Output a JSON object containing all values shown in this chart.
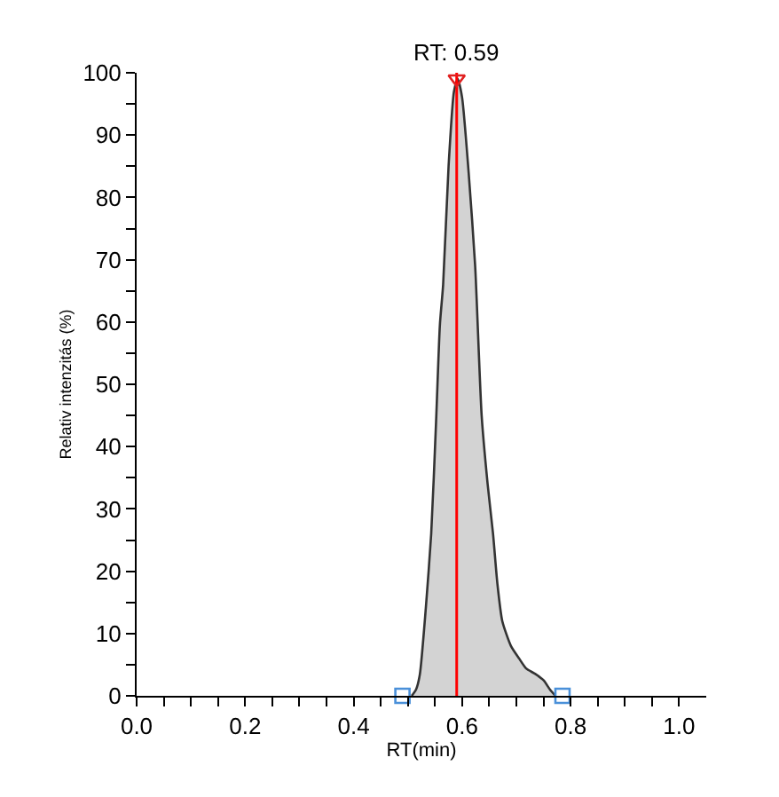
{
  "chart_data": {
    "type": "area",
    "xlabel": "RT(min)",
    "ylabel": "Relativ intenzitás (%)",
    "series": [
      {
        "color": "#d3d3d3",
        "x": [
          0.507,
          0.515,
          0.522,
          0.533,
          0.543,
          0.552,
          0.559,
          0.565,
          0.575,
          0.585,
          0.592,
          0.6,
          0.612,
          0.624,
          0.636,
          0.647,
          0.657,
          0.665,
          0.674,
          0.69,
          0.705,
          0.718,
          0.735,
          0.75,
          0.762,
          0.772
        ],
        "values": [
          0,
          1,
          3.4,
          14,
          26,
          44,
          59.5,
          66,
          85,
          97,
          99,
          96,
          84,
          69,
          45,
          34,
          26,
          18,
          12,
          8,
          6,
          4.4,
          3.5,
          2.5,
          1,
          0
        ]
      },
      {
        "type": "scatter",
        "marker": "square",
        "color": "#4a90d9",
        "x": [
          0.49,
          0.785
        ],
        "values": [
          0,
          0
        ]
      },
      {
        "type": "scatter",
        "marker": "triangle",
        "color": "#e02020",
        "x": [
          0.59
        ],
        "values": [
          99
        ]
      }
    ],
    "ref_lines": [
      {
        "axis": "x",
        "value": 0.59,
        "color": "#ff0000",
        "line_style": "solid"
      }
    ],
    "annotations": [
      {
        "text": "RT: 0.59",
        "x": 0.59,
        "y": 99
      }
    ],
    "xlim": [
      0,
      1.05
    ],
    "ylim": [
      0,
      100
    ],
    "xticks": [
      {
        "value": 0,
        "label": "0.0"
      },
      {
        "value": 0.05,
        "label": null
      },
      {
        "value": 0.1,
        "label": null
      },
      {
        "value": 0.15,
        "label": null
      },
      {
        "value": 0.2,
        "label": "0.2"
      },
      {
        "value": 0.25,
        "label": null
      },
      {
        "value": 0.3,
        "label": null
      },
      {
        "value": 0.35,
        "label": null
      },
      {
        "value": 0.4,
        "label": "0.4"
      },
      {
        "value": 0.45,
        "label": null
      },
      {
        "value": 0.5,
        "label": null
      },
      {
        "value": 0.55,
        "label": null
      },
      {
        "value": 0.6,
        "label": "0.6"
      },
      {
        "value": 0.65,
        "label": null
      },
      {
        "value": 0.7,
        "label": null
      },
      {
        "value": 0.75,
        "label": null
      },
      {
        "value": 0.8,
        "label": "0.8"
      },
      {
        "value": 0.85,
        "label": null
      },
      {
        "value": 0.9,
        "label": null
      },
      {
        "value": 0.95,
        "label": null
      },
      {
        "value": 1,
        "label": "1.0"
      }
    ],
    "yticks": [
      0,
      {
        "value": 5,
        "label": null
      },
      10,
      {
        "value": 15,
        "label": null
      },
      20,
      {
        "value": 25,
        "label": null
      },
      30,
      {
        "value": 35,
        "label": null
      },
      40,
      {
        "value": 45,
        "label": null
      },
      50,
      {
        "value": 55,
        "label": null
      },
      60,
      {
        "value": 65,
        "label": null
      },
      70,
      {
        "value": 75,
        "label": null
      },
      80,
      {
        "value": 85,
        "label": null
      },
      90,
      {
        "value": 95,
        "label": null
      },
      100
    ]
  }
}
